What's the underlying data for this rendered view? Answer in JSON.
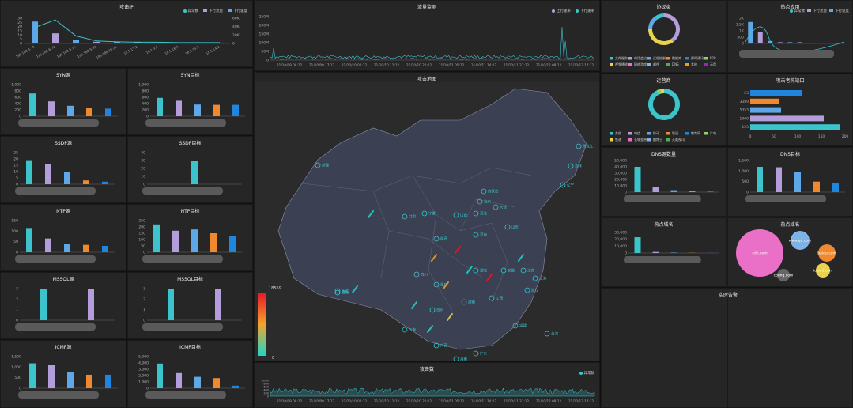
{
  "colors": {
    "teal": "#3bc4cc",
    "purple": "#b39ddb",
    "blue": "#5fa8e8",
    "orange": "#f0892d",
    "deepblue": "#1f86e0",
    "pink": "#e970c6",
    "lightblue": "#7fb3e6",
    "yellow": "#e9d24c",
    "green": "#8cd36a"
  },
  "attack_ip": {
    "title": "攻击IP",
    "legend": [
      "异常数",
      "下行流量",
      "下行速度"
    ],
    "x_labels": [
      "185.188.3.76",
      "185.188.6.72",
      "185.188.8.14",
      "185.188.9.33",
      "185.188.10.21",
      "10.1.17.2",
      "10.1.3.4",
      "10.1.16.4",
      "10.1.15.2",
      "10.1.14.2"
    ],
    "values": [
      26,
      12,
      4,
      2,
      2,
      2,
      1,
      1,
      1,
      1
    ],
    "y_ticks": [
      "30",
      "25",
      "20",
      "15",
      "10",
      "5",
      "0"
    ],
    "y2_ticks": [
      "60K",
      "40K",
      "20K",
      "0"
    ],
    "curve": [
      38,
      56,
      18,
      6,
      4,
      3,
      3,
      2,
      2,
      2
    ]
  },
  "syn_src": {
    "title": "SYN源",
    "y_ticks": [
      "1,000",
      "800",
      "600",
      "400",
      "200",
      "0"
    ],
    "values": [
      720,
      470,
      330,
      270,
      240
    ]
  },
  "syn_dst": {
    "title": "SYN目标",
    "y_ticks": [
      "1,000",
      "800",
      "600",
      "400",
      "200",
      "0"
    ],
    "values": [
      580,
      490,
      370,
      360,
      360
    ]
  },
  "ssdp_src": {
    "title": "SSDP源",
    "y_ticks": [
      "25",
      "20",
      "15",
      "10",
      "5",
      "0"
    ],
    "values": [
      19,
      16,
      10,
      3,
      2
    ]
  },
  "ssdp_dst": {
    "title": "SSDP目标",
    "y_ticks": [
      "40",
      "30",
      "20",
      "10",
      "0"
    ],
    "values": [
      0,
      0,
      30,
      0,
      0
    ]
  },
  "ntp_src": {
    "title": "NTP源",
    "y_ticks": [
      "150",
      "100",
      "50",
      "0"
    ],
    "values": [
      115,
      65,
      40,
      35,
      30
    ]
  },
  "ntp_dst": {
    "title": "NTP目标",
    "y_ticks": [
      "250",
      "200",
      "150",
      "100",
      "50",
      "0"
    ],
    "values": [
      220,
      170,
      180,
      150,
      130
    ]
  },
  "mssql_src": {
    "title": "MSSQL源",
    "y_ticks": [
      "3",
      "2",
      "1",
      "0"
    ],
    "values": [
      3,
      3
    ]
  },
  "mssql_dst": {
    "title": "MSSQL目标",
    "y_ticks": [
      "3",
      "2",
      "1",
      "0"
    ],
    "values": [
      3,
      3
    ]
  },
  "icmp_src": {
    "title": "ICMP源",
    "y_ticks": [
      "1,500",
      "1,000",
      "500",
      "0"
    ],
    "values": [
      1180,
      1100,
      760,
      640,
      640
    ]
  },
  "icmp_dst": {
    "title": "ICMP目标",
    "y_ticks": [
      "5,000",
      "4,000",
      "3,000",
      "2,000",
      "1,000",
      "0"
    ],
    "values": [
      3900,
      2400,
      1800,
      1600,
      400
    ]
  },
  "traffic": {
    "title": "流量监测",
    "legend": [
      "上行速率",
      "下行速率"
    ],
    "y_ticks": [
      "250M",
      "200M",
      "150M",
      "100M",
      "50M",
      "0"
    ],
    "x_labels": [
      "21/10/09 08:12",
      "21/10/09 17:12",
      "21/10/10 02:12",
      "21/10/10 11:12",
      "21/10/10 20:12",
      "21/10/11 05:12",
      "21/10/11 14:12",
      "21/10/11 23:12",
      "21/10/12 08:12",
      "21/10/12 17:12"
    ]
  },
  "map": {
    "title": "攻击地图",
    "legend_max": "18569",
    "legend_min": "0",
    "cities": [
      {
        "name": "新疆"
      },
      {
        "name": "黑龙江"
      },
      {
        "name": "吉林"
      },
      {
        "name": "辽宁"
      },
      {
        "name": "内蒙古"
      },
      {
        "name": "北京"
      },
      {
        "name": "天津"
      },
      {
        "name": "河北"
      },
      {
        "name": "山西"
      },
      {
        "name": "宁夏"
      },
      {
        "name": "甘肃"
      },
      {
        "name": "青海"
      },
      {
        "name": "陕西"
      },
      {
        "name": "河南"
      },
      {
        "name": "山东"
      },
      {
        "name": "江苏"
      },
      {
        "name": "上海"
      },
      {
        "name": "安徽"
      },
      {
        "name": "湖北"
      },
      {
        "name": "四川"
      },
      {
        "name": "西藏"
      },
      {
        "name": "重庆"
      },
      {
        "name": "湖南"
      },
      {
        "name": "江西"
      },
      {
        "name": "浙江"
      },
      {
        "name": "福建"
      },
      {
        "name": "贵州"
      },
      {
        "name": "云南"
      },
      {
        "name": "广西"
      },
      {
        "name": "广东"
      },
      {
        "name": "海南"
      },
      {
        "name": "台湾"
      }
    ]
  },
  "attack_count": {
    "title": "攻击数",
    "legend": [
      "异常数"
    ],
    "y_ticks": [
      "1000",
      "800",
      "600",
      "400",
      "200",
      "0"
    ],
    "x_labels": [
      "21/10/09 08:12",
      "21/10/09 17:12",
      "21/10/10 02:12",
      "21/10/10 11:12",
      "21/10/10 20:12",
      "21/10/11 05:12",
      "21/10/11 14:12",
      "21/10/11 23:12",
      "21/10/12 08:12",
      "21/10/12 17:12"
    ]
  },
  "protocol": {
    "title": "协议类",
    "legend": [
      "文件服务",
      "电话会议",
      "远程控制",
      "数据库",
      "即时通讯",
      "P2P",
      "视频播放",
      "网络游戏",
      "邮件",
      "DNS",
      "其他",
      "云盘"
    ]
  },
  "top_app": {
    "title": "热点应用",
    "legend": [
      "异常数",
      "下行流量",
      "下行速度"
    ],
    "y_ticks": [
      "2K",
      "1.5K",
      "1K",
      "500",
      "0"
    ],
    "values": [
      1.7,
      0.9,
      0.2,
      0.1,
      0.1,
      0.1,
      0.05,
      0.05,
      0.05,
      0.05
    ]
  },
  "operator": {
    "title": "运营商",
    "legend": [
      "其他",
      "电信",
      "移动",
      "联通",
      "教育网",
      "广电",
      "铁通",
      "长城宽带",
      "鹏博士",
      "天威视讯"
    ]
  },
  "hot_port": {
    "title": "攻击者热端口",
    "ports": [
      "53",
      "3389",
      "5353",
      "1900",
      "123"
    ],
    "values": [
      110,
      60,
      65,
      155,
      190
    ],
    "x_ticks": [
      "0",
      "50",
      "100",
      "150",
      "200"
    ]
  },
  "dns_src": {
    "title": "DNS源数量",
    "y_ticks": [
      "50,000",
      "40,000",
      "30,000",
      "20,000",
      "10,000",
      "0"
    ],
    "values": [
      40000,
      8000,
      3000,
      2000,
      1000
    ]
  },
  "dns_dst": {
    "title": "DNS目标",
    "y_ticks": [
      "1,500",
      "1,000",
      "500",
      "0"
    ],
    "values": [
      1200,
      1180,
      940,
      500,
      420
    ]
  },
  "hot_domain": {
    "title": "热点域名",
    "y_ticks": [
      "30,000",
      "20,000",
      "10,000",
      "0"
    ],
    "values": [
      23000,
      1500,
      600,
      300,
      200
    ]
  },
  "hot_domain2": {
    "title": "热点域名",
    "labels": [
      "cdn.com",
      "www.qq.com",
      "baidu.com",
      "icloud.com",
      "config.com"
    ]
  },
  "live_alert": {
    "title": "实时告警"
  }
}
